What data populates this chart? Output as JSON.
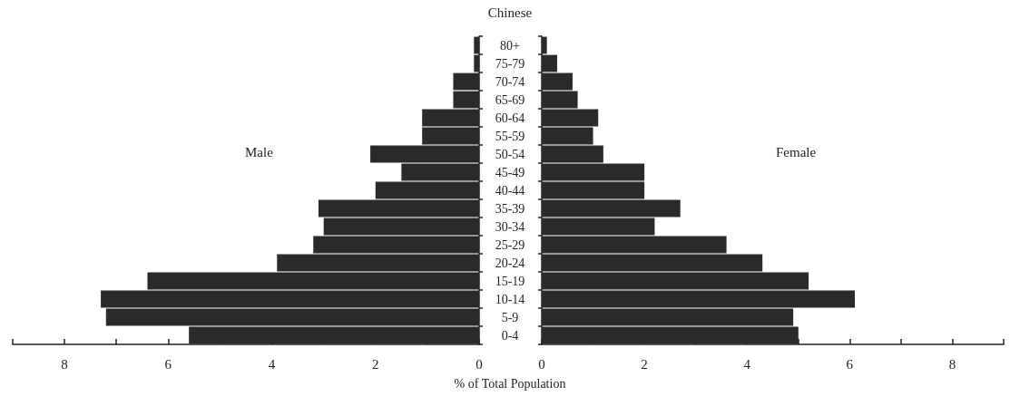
{
  "chart_data": [
    {
      "type": "bar",
      "orientation": "horizontal",
      "title": "Chinese",
      "xlabel": "% of Total Population",
      "categories": [
        "80+",
        "75-79",
        "70-74",
        "65-69",
        "60-64",
        "55-59",
        "50-54",
        "45-49",
        "40-44",
        "35-39",
        "30-34",
        "25-29",
        "20-24",
        "15-19",
        "10-14",
        "5-9",
        "0-4"
      ],
      "series": [
        {
          "name": "Male",
          "color": "#2a2a2a",
          "values": [
            0.1,
            0.1,
            0.5,
            0.5,
            1.1,
            1.1,
            2.1,
            1.5,
            2.0,
            3.1,
            3.0,
            3.2,
            3.9,
            6.4,
            7.3,
            7.2,
            5.6
          ]
        }
      ],
      "xlim": [
        9,
        0
      ],
      "xticks": [
        {
          "value": 9,
          "label": null
        },
        8,
        {
          "value": 7,
          "label": null
        },
        6,
        {
          "value": 5,
          "label": null
        },
        4,
        {
          "value": 3,
          "label": null
        },
        2,
        {
          "value": 1,
          "label": null
        },
        0
      ]
    },
    {
      "type": "bar",
      "orientation": "horizontal",
      "tick_labels": "x",
      "categories": [
        null,
        null,
        null,
        null,
        null,
        null,
        null,
        null,
        null,
        null,
        null,
        null,
        null,
        null,
        null,
        null,
        null
      ],
      "series": [
        {
          "name": "Female",
          "color": "#2a2a2a",
          "values": [
            0.1,
            0.3,
            0.6,
            0.7,
            1.1,
            1.0,
            1.2,
            2.0,
            2.0,
            2.7,
            2.2,
            3.6,
            4.3,
            5.2,
            6.1,
            4.9,
            5.0
          ]
        }
      ],
      "xlim": [
        0,
        9
      ],
      "xticks": [
        0,
        {
          "value": 1,
          "label": null
        },
        2,
        {
          "value": 3,
          "label": null
        },
        4,
        {
          "value": 5,
          "label": null
        },
        6,
        {
          "value": 7,
          "label": null
        },
        8,
        {
          "value": 9,
          "label": null
        }
      ]
    }
  ]
}
